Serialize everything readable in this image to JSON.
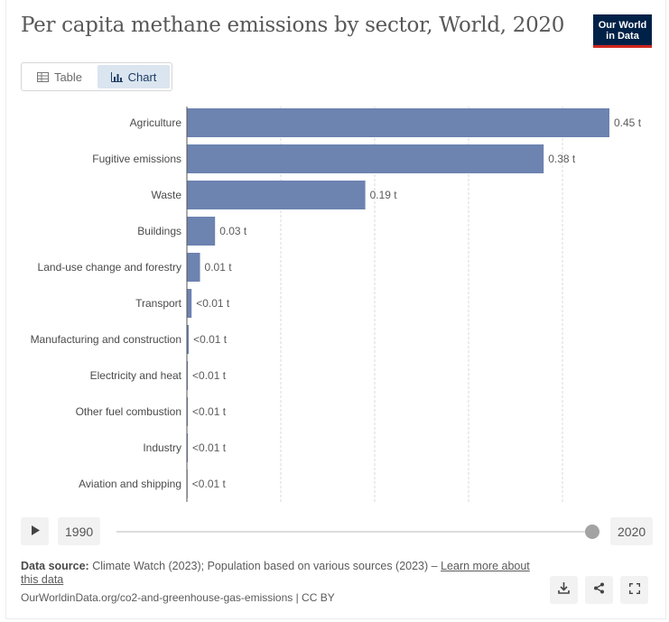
{
  "header": {
    "title": "Per capita methane emissions by sector, World, 2020",
    "logo_line1": "Our World",
    "logo_line2": "in Data"
  },
  "tabs": [
    {
      "label": "Table",
      "icon": "table-icon",
      "active": false
    },
    {
      "label": "Chart",
      "icon": "chart-icon",
      "active": true
    }
  ],
  "colors": {
    "bar": "#6d83b0",
    "gridline": "#dadada",
    "axis": "#555555",
    "logo_bg": "#002147",
    "logo_accent": "#ce261e",
    "tab_active_bg": "#dbe5f0"
  },
  "chart_data": {
    "type": "bar",
    "orientation": "horizontal",
    "unit": "t",
    "categories": [
      "Agriculture",
      "Fugitive emissions",
      "Waste",
      "Buildings",
      "Land-use change and forestry",
      "Transport",
      "Manufacturing and construction",
      "Electricity and heat",
      "Other fuel combustion",
      "Industry",
      "Aviation and shipping"
    ],
    "values": [
      0.45,
      0.38,
      0.19,
      0.03,
      0.014,
      0.005,
      0.002,
      0.001,
      0.001,
      0.001,
      0.0005
    ],
    "data_labels": [
      "0.45 t",
      "0.38 t",
      "0.19 t",
      "0.03 t",
      "0.01 t",
      "<0.01 t",
      "<0.01 t",
      "<0.01 t",
      "<0.01 t",
      "<0.01 t",
      "<0.01 t"
    ],
    "xlim": [
      0,
      0.45
    ],
    "gridlines_at": [
      0.1,
      0.2,
      0.3,
      0.4
    ],
    "grid": true,
    "gridline_style": "dashed"
  },
  "timeline": {
    "start_year": "1990",
    "end_year": "2020",
    "position": 1.0
  },
  "footer": {
    "source_label": "Data source:",
    "source_text": "Climate Watch (2023); Population based on various sources (2023) –",
    "learn_more": "Learn more about this data",
    "url": "OurWorldinData.org/co2-and-greenhouse-gas-emissions | CC BY"
  },
  "actions": [
    {
      "icon": "download-icon"
    },
    {
      "icon": "share-icon"
    },
    {
      "icon": "fullscreen-icon"
    }
  ]
}
